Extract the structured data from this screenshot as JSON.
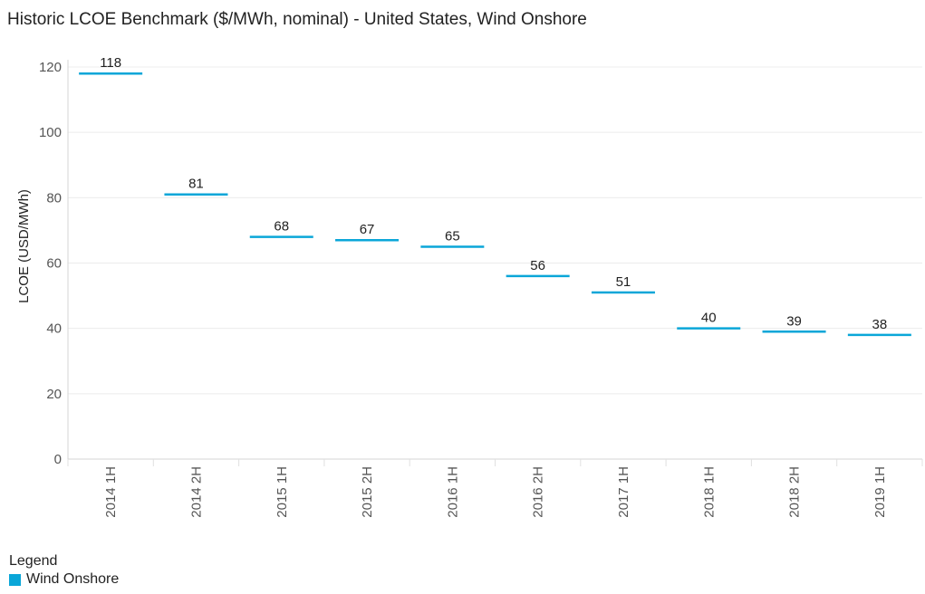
{
  "chart_data": {
    "type": "line",
    "title": "Historic LCOE Benchmark ($/MWh, nominal) - United States, Wind Onshore",
    "xlabel": "",
    "ylabel": "LCOE (USD/MWh)",
    "categories": [
      "2014 1H",
      "2014 2H",
      "2015 1H",
      "2015 2H",
      "2016 1H",
      "2016 2H",
      "2017 1H",
      "2018 1H",
      "2018 2H",
      "2019 1H"
    ],
    "series": [
      {
        "name": "Wind Onshore",
        "values": [
          118,
          81,
          68,
          67,
          65,
          56,
          51,
          40,
          39,
          38
        ],
        "color": "#0aa6d8"
      }
    ],
    "ylim": [
      0,
      120
    ],
    "yticks": [
      0,
      20,
      40,
      60,
      80,
      100,
      120
    ],
    "grid": true,
    "legend_position": "bottom-left"
  },
  "legend": {
    "title": "Legend",
    "items": [
      {
        "label": "Wind Onshore",
        "color": "#0aa6d8"
      }
    ]
  }
}
